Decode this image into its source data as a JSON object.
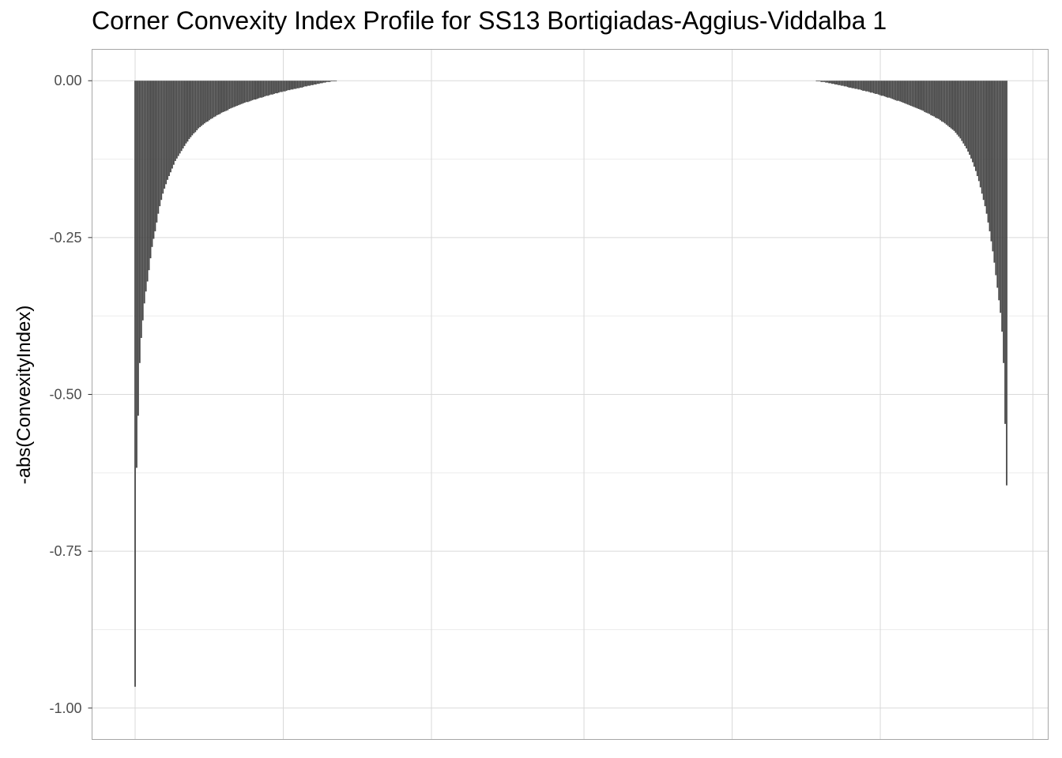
{
  "chart_data": {
    "type": "bar",
    "title": "Corner Convexity Index Profile for SS13 Bortigiadas-Aggius-Viddalba 1",
    "xlabel": "",
    "ylabel": "-abs(ConvexityIndex)",
    "ylim": [
      -1.05,
      0.05
    ],
    "y_ticks": [
      0.0,
      -0.25,
      -0.5,
      -0.75,
      -1.0
    ],
    "y_tick_labels": [
      "0.00",
      "-0.25",
      "-0.50",
      "-0.75",
      "-1.00"
    ],
    "x_tick_labels": [],
    "grid": true,
    "legend": "none",
    "bar_color": "#474747",
    "panel_border_color": "#a6a6a6",
    "grid_color": "#d9d9d9",
    "n_bars": 585,
    "values": [
      -0.966,
      -0.617,
      -0.534,
      -0.45,
      -0.41,
      -0.382,
      -0.355,
      -0.336,
      -0.32,
      -0.302,
      -0.283,
      -0.265,
      -0.252,
      -0.24,
      -0.226,
      -0.212,
      -0.2,
      -0.19,
      -0.18,
      -0.172,
      -0.165,
      -0.158,
      -0.152,
      -0.146,
      -0.14,
      -0.134,
      -0.128,
      -0.124,
      -0.12,
      -0.116,
      -0.112,
      -0.108,
      -0.104,
      -0.1,
      -0.097,
      -0.093,
      -0.09,
      -0.087,
      -0.084,
      -0.082,
      -0.079,
      -0.076,
      -0.074,
      -0.072,
      -0.07,
      -0.068,
      -0.066,
      -0.065,
      -0.063,
      -0.061,
      -0.06,
      -0.058,
      -0.057,
      -0.055,
      -0.054,
      -0.053,
      -0.051,
      -0.05,
      -0.049,
      -0.048,
      -0.047,
      -0.045,
      -0.044,
      -0.043,
      -0.042,
      -0.041,
      -0.04,
      -0.039,
      -0.038,
      -0.037,
      -0.036,
      -0.035,
      -0.034,
      -0.034,
      -0.033,
      -0.032,
      -0.031,
      -0.03,
      -0.03,
      -0.029,
      -0.028,
      -0.027,
      -0.027,
      -0.026,
      -0.025,
      -0.024,
      -0.024,
      -0.023,
      -0.022,
      -0.022,
      -0.021,
      -0.02,
      -0.02,
      -0.019,
      -0.018,
      -0.018,
      -0.017,
      -0.017,
      -0.016,
      -0.015,
      -0.015,
      -0.014,
      -0.014,
      -0.013,
      -0.013,
      -0.012,
      -0.012,
      -0.011,
      -0.011,
      -0.01,
      -0.009,
      -0.009,
      -0.008,
      -0.008,
      -0.007,
      -0.007,
      -0.006,
      -0.006,
      -0.005,
      -0.005,
      -0.004,
      -0.004,
      -0.003,
      -0.003,
      -0.002,
      -0.002,
      -0.002,
      -0.001,
      -0.001,
      -0.001,
      -0.001,
      0.0,
      0.0,
      0.0,
      0.0,
      0.0,
      0.0,
      0.0,
      0.0,
      0.0,
      0.0,
      0.0,
      0.0,
      0.0,
      0.0,
      0.0,
      0.0,
      0.0,
      0.0,
      0.0,
      0.0,
      0.0,
      0.0,
      0.0,
      0.0,
      0.0,
      0.0,
      0.0,
      0.0,
      0.0,
      0.0,
      0.0,
      0.0,
      0.0,
      0.0,
      0.0,
      0.0,
      0.0,
      0.0,
      0.0,
      0.0,
      0.0,
      0.0,
      0.0,
      0.0,
      0.0,
      0.0,
      0.0,
      0.0,
      0.0,
      0.0,
      0.0,
      0.0,
      0.0,
      0.0,
      0.0,
      0.0,
      0.0,
      0.0,
      0.0,
      0.0,
      0.0,
      0.0,
      0.0,
      0.0,
      0.0,
      0.0,
      0.0,
      0.0,
      0.0,
      0.0,
      0.0,
      0.0,
      0.0,
      0.0,
      0.0,
      0.0,
      0.0,
      0.0,
      0.0,
      0.0,
      0.0,
      0.0,
      0.0,
      0.0,
      0.0,
      0.0,
      0.0,
      0.0,
      0.0,
      0.0,
      0.0,
      0.0,
      0.0,
      0.0,
      0.0,
      0.0,
      0.0,
      0.0,
      0.0,
      0.0,
      0.0,
      0.0,
      0.0,
      0.0,
      0.0,
      0.0,
      0.0,
      0.0,
      0.0,
      0.0,
      0.0,
      0.0,
      0.0,
      0.0,
      0.0,
      0.0,
      0.0,
      0.0,
      0.0,
      0.0,
      0.0,
      0.0,
      0.0,
      0.0,
      0.0,
      0.0,
      0.0,
      0.0,
      0.0,
      0.0,
      0.0,
      0.0,
      0.0,
      0.0,
      0.0,
      0.0,
      0.0,
      0.0,
      0.0,
      0.0,
      0.0,
      0.0,
      0.0,
      0.0,
      0.0,
      0.0,
      0.0,
      0.0,
      0.0,
      0.0,
      0.0,
      0.0,
      0.0,
      0.0,
      0.0,
      0.0,
      0.0,
      0.0,
      0.0,
      0.0,
      0.0,
      0.0,
      0.0,
      0.0,
      0.0,
      0.0,
      0.0,
      0.0,
      0.0,
      0.0,
      0.0,
      0.0,
      0.0,
      0.0,
      0.0,
      0.0,
      0.0,
      0.0,
      0.0,
      0.0,
      0.0,
      0.0,
      0.0,
      0.0,
      0.0,
      0.0,
      0.0,
      0.0,
      0.0,
      0.0,
      0.0,
      0.0,
      0.0,
      0.0,
      0.0,
      0.0,
      0.0,
      0.0,
      0.0,
      0.0,
      0.0,
      0.0,
      0.0,
      0.0,
      0.0,
      0.0,
      0.0,
      0.0,
      0.0,
      0.0,
      0.0,
      0.0,
      0.0,
      0.0,
      0.0,
      0.0,
      0.0,
      0.0,
      0.0,
      0.0,
      0.0,
      0.0,
      0.0,
      0.0,
      0.0,
      0.0,
      0.0,
      0.0,
      0.0,
      0.0,
      0.0,
      0.0,
      0.0,
      0.0,
      0.0,
      0.0,
      0.0,
      0.0,
      0.0,
      0.0,
      0.0,
      0.0,
      0.0,
      0.0,
      0.0,
      0.0,
      0.0,
      0.0,
      0.0,
      0.0,
      0.0,
      0.0,
      0.0,
      0.0,
      0.0,
      0.0,
      0.0,
      0.0,
      0.0,
      0.0,
      0.0,
      0.0,
      0.0,
      0.0,
      0.0,
      0.0,
      0.0,
      0.0,
      0.0,
      0.0,
      0.0,
      0.0,
      0.0,
      0.0,
      0.0,
      0.0,
      0.0,
      0.0,
      0.0,
      0.0,
      0.0,
      0.0,
      0.0,
      0.0,
      0.0,
      0.0,
      0.0,
      0.0,
      0.0,
      0.0,
      0.0,
      0.0,
      0.0,
      0.0,
      0.0,
      0.0,
      0.0,
      0.0,
      0.0,
      0.0,
      0.0,
      0.0,
      0.0,
      0.0,
      0.0,
      0.0,
      0.0,
      0.0,
      0.0,
      0.0,
      -0.001,
      -0.001,
      -0.001,
      -0.002,
      -0.002,
      -0.002,
      -0.003,
      -0.003,
      -0.004,
      -0.004,
      -0.005,
      -0.005,
      -0.006,
      -0.006,
      -0.007,
      -0.007,
      -0.008,
      -0.008,
      -0.009,
      -0.009,
      -0.01,
      -0.011,
      -0.011,
      -0.012,
      -0.012,
      -0.013,
      -0.013,
      -0.014,
      -0.014,
      -0.015,
      -0.016,
      -0.016,
      -0.017,
      -0.017,
      -0.018,
      -0.019,
      -0.019,
      -0.02,
      -0.021,
      -0.021,
      -0.022,
      -0.023,
      -0.024,
      -0.024,
      -0.025,
      -0.026,
      -0.027,
      -0.027,
      -0.028,
      -0.029,
      -0.03,
      -0.031,
      -0.032,
      -0.032,
      -0.033,
      -0.034,
      -0.035,
      -0.036,
      -0.037,
      -0.038,
      -0.039,
      -0.04,
      -0.041,
      -0.042,
      -0.043,
      -0.044,
      -0.045,
      -0.046,
      -0.047,
      -0.048,
      -0.05,
      -0.051,
      -0.052,
      -0.053,
      -0.055,
      -0.056,
      -0.057,
      -0.059,
      -0.06,
      -0.061,
      -0.063,
      -0.065,
      -0.066,
      -0.068,
      -0.07,
      -0.072,
      -0.074,
      -0.076,
      -0.078,
      -0.08,
      -0.083,
      -0.086,
      -0.089,
      -0.092,
      -0.096,
      -0.1,
      -0.104,
      -0.108,
      -0.113,
      -0.118,
      -0.124,
      -0.13,
      -0.137,
      -0.144,
      -0.152,
      -0.16,
      -0.17,
      -0.18,
      -0.19,
      -0.2,
      -0.212,
      -0.226,
      -0.24,
      -0.256,
      -0.272,
      -0.29,
      -0.31,
      -0.33,
      -0.35,
      -0.37,
      -0.4,
      -0.45,
      -0.547,
      -0.645
    ]
  }
}
